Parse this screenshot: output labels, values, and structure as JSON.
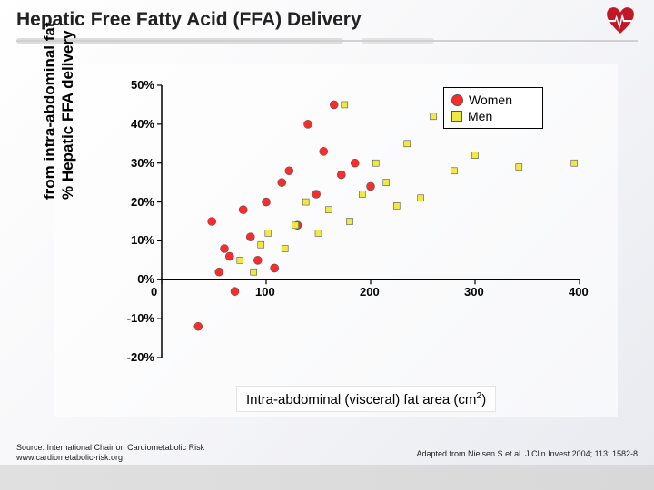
{
  "slide": {
    "title": "Hepatic Free Fatty Acid (FFA) Delivery",
    "logo_color": "#c01827"
  },
  "chart": {
    "type": "scatter",
    "xlim": [
      0,
      400
    ],
    "ylim": [
      -20,
      50
    ],
    "xtick_step": 100,
    "ytick_step": 10,
    "xtick_labels": [
      "0",
      "100",
      "200",
      "300",
      "400"
    ],
    "ytick_labels": [
      "-20%",
      "-10%",
      "0%",
      "10%",
      "20%",
      "30%",
      "40%",
      "50%"
    ],
    "axis_color": "#000000",
    "tick_font_size": 13,
    "background_color": "#ffffff",
    "y_axis_label_line1": "% Hepatic FFA delivery",
    "y_axis_label_line2": "from intra-abdominal fat",
    "x_axis_label_prefix": "Intra-abdominal (visceral) fat area (cm",
    "x_axis_label_sup": "2",
    "x_axis_label_suffix": ")",
    "legend": {
      "women_label": "Women",
      "men_label": "Men",
      "women_color": "#ff2a2a",
      "men_color": "#f2e842"
    },
    "marker_size": 7,
    "marker_stroke": "#555555",
    "women_color": "#ff2a2a",
    "men_color": "#f2e842",
    "women_points": [
      [
        35,
        -12
      ],
      [
        48,
        15
      ],
      [
        55,
        2
      ],
      [
        60,
        8
      ],
      [
        65,
        6
      ],
      [
        70,
        -3
      ],
      [
        78,
        18
      ],
      [
        85,
        11
      ],
      [
        92,
        5
      ],
      [
        100,
        20
      ],
      [
        108,
        3
      ],
      [
        115,
        25
      ],
      [
        122,
        28
      ],
      [
        130,
        14
      ],
      [
        140,
        40
      ],
      [
        148,
        22
      ],
      [
        155,
        33
      ],
      [
        165,
        45
      ],
      [
        172,
        27
      ],
      [
        185,
        30
      ],
      [
        200,
        24
      ]
    ],
    "men_points": [
      [
        75,
        5
      ],
      [
        88,
        2
      ],
      [
        95,
        9
      ],
      [
        102,
        12
      ],
      [
        118,
        8
      ],
      [
        128,
        14
      ],
      [
        138,
        20
      ],
      [
        150,
        12
      ],
      [
        160,
        18
      ],
      [
        175,
        45
      ],
      [
        180,
        15
      ],
      [
        192,
        22
      ],
      [
        205,
        30
      ],
      [
        215,
        25
      ],
      [
        225,
        19
      ],
      [
        235,
        35
      ],
      [
        248,
        21
      ],
      [
        260,
        42
      ],
      [
        280,
        28
      ],
      [
        300,
        32
      ],
      [
        342,
        29
      ],
      [
        395,
        30
      ]
    ]
  },
  "footer": {
    "source_line1": "Source: International Chair on Cardiometabolic Risk",
    "source_line2": "www.cardiometabolic-risk.org",
    "right": "Adapted from Nielsen S et al. J Clin Invest 2004; 113: 1582-8"
  }
}
